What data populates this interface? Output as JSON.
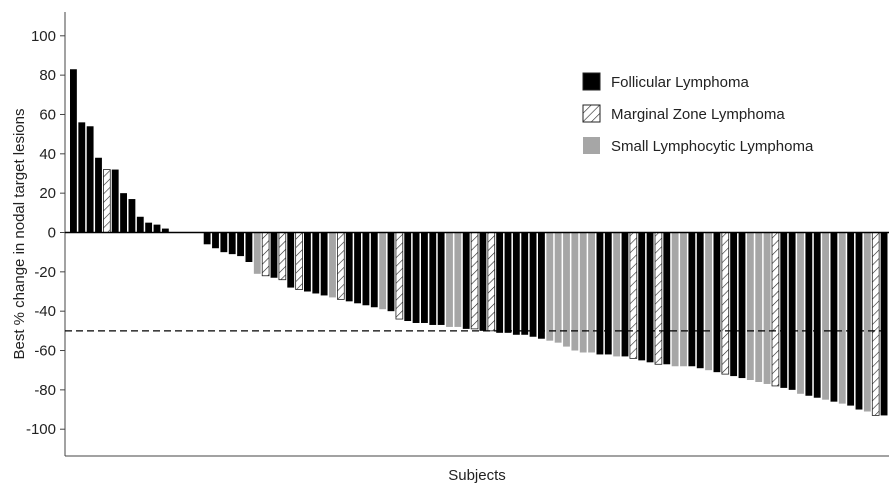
{
  "chart_data": {
    "type": "bar",
    "title": "",
    "xlabel": "Subjects",
    "ylabel": "Best % change in nodal target lesions",
    "ylim": [
      -115,
      110
    ],
    "yticks": [
      100,
      80,
      60,
      40,
      20,
      0,
      -20,
      -40,
      -60,
      -80,
      -100
    ],
    "grid": false,
    "legend_position": "top-right",
    "reference_line": {
      "y": -50,
      "style": "dashed"
    },
    "series": [
      {
        "name": "Follicular Lymphoma",
        "key": "FL",
        "color": "#000000",
        "pattern": "solid"
      },
      {
        "name": "Marginal Zone Lymphoma",
        "key": "MZL",
        "color": "#ffffff",
        "pattern": "hatched"
      },
      {
        "name": "Small Lymphocytic Lymphoma",
        "key": "SLL",
        "color": "#a6a6a6",
        "pattern": "solid"
      }
    ],
    "bars": [
      {
        "v": 83,
        "t": "FL"
      },
      {
        "v": 56,
        "t": "FL"
      },
      {
        "v": 54,
        "t": "FL"
      },
      {
        "v": 38,
        "t": "FL"
      },
      {
        "v": 32,
        "t": "MZL"
      },
      {
        "v": 32,
        "t": "FL"
      },
      {
        "v": 20,
        "t": "FL"
      },
      {
        "v": 17,
        "t": "FL"
      },
      {
        "v": 8,
        "t": "FL"
      },
      {
        "v": 5,
        "t": "FL"
      },
      {
        "v": 4,
        "t": "FL"
      },
      {
        "v": 2,
        "t": "FL"
      },
      {
        "v": 0,
        "t": "FL"
      },
      {
        "v": 0,
        "t": "FL"
      },
      {
        "v": 0,
        "t": "FL"
      },
      {
        "v": 0,
        "t": "FL"
      },
      {
        "v": -6,
        "t": "FL"
      },
      {
        "v": -8,
        "t": "FL"
      },
      {
        "v": -10,
        "t": "FL"
      },
      {
        "v": -11,
        "t": "FL"
      },
      {
        "v": -12,
        "t": "FL"
      },
      {
        "v": -15,
        "t": "FL"
      },
      {
        "v": -21,
        "t": "SLL"
      },
      {
        "v": -22,
        "t": "MZL"
      },
      {
        "v": -23,
        "t": "FL"
      },
      {
        "v": -24,
        "t": "MZL"
      },
      {
        "v": -28,
        "t": "FL"
      },
      {
        "v": -29,
        "t": "MZL"
      },
      {
        "v": -30,
        "t": "FL"
      },
      {
        "v": -31,
        "t": "FL"
      },
      {
        "v": -32,
        "t": "FL"
      },
      {
        "v": -33,
        "t": "SLL"
      },
      {
        "v": -34,
        "t": "MZL"
      },
      {
        "v": -35,
        "t": "FL"
      },
      {
        "v": -36,
        "t": "FL"
      },
      {
        "v": -37,
        "t": "FL"
      },
      {
        "v": -38,
        "t": "FL"
      },
      {
        "v": -39,
        "t": "SLL"
      },
      {
        "v": -40,
        "t": "FL"
      },
      {
        "v": -44,
        "t": "MZL"
      },
      {
        "v": -45,
        "t": "FL"
      },
      {
        "v": -46,
        "t": "FL"
      },
      {
        "v": -46,
        "t": "FL"
      },
      {
        "v": -47,
        "t": "FL"
      },
      {
        "v": -47,
        "t": "FL"
      },
      {
        "v": -48,
        "t": "SLL"
      },
      {
        "v": -48,
        "t": "SLL"
      },
      {
        "v": -49,
        "t": "FL"
      },
      {
        "v": -49,
        "t": "MZL"
      },
      {
        "v": -50,
        "t": "FL"
      },
      {
        "v": -50,
        "t": "MZL"
      },
      {
        "v": -51,
        "t": "FL"
      },
      {
        "v": -51,
        "t": "FL"
      },
      {
        "v": -52,
        "t": "FL"
      },
      {
        "v": -52,
        "t": "FL"
      },
      {
        "v": -53,
        "t": "FL"
      },
      {
        "v": -54,
        "t": "FL"
      },
      {
        "v": -55,
        "t": "SLL"
      },
      {
        "v": -56,
        "t": "SLL"
      },
      {
        "v": -58,
        "t": "SLL"
      },
      {
        "v": -60,
        "t": "SLL"
      },
      {
        "v": -61,
        "t": "SLL"
      },
      {
        "v": -61,
        "t": "SLL"
      },
      {
        "v": -62,
        "t": "FL"
      },
      {
        "v": -62,
        "t": "FL"
      },
      {
        "v": -63,
        "t": "SLL"
      },
      {
        "v": -63,
        "t": "FL"
      },
      {
        "v": -64,
        "t": "MZL"
      },
      {
        "v": -65,
        "t": "FL"
      },
      {
        "v": -66,
        "t": "FL"
      },
      {
        "v": -67,
        "t": "MZL"
      },
      {
        "v": -67,
        "t": "FL"
      },
      {
        "v": -68,
        "t": "SLL"
      },
      {
        "v": -68,
        "t": "SLL"
      },
      {
        "v": -68,
        "t": "FL"
      },
      {
        "v": -69,
        "t": "FL"
      },
      {
        "v": -70,
        "t": "SLL"
      },
      {
        "v": -71,
        "t": "FL"
      },
      {
        "v": -72,
        "t": "MZL"
      },
      {
        "v": -73,
        "t": "FL"
      },
      {
        "v": -74,
        "t": "FL"
      },
      {
        "v": -75,
        "t": "SLL"
      },
      {
        "v": -76,
        "t": "SLL"
      },
      {
        "v": -77,
        "t": "SLL"
      },
      {
        "v": -78,
        "t": "MZL"
      },
      {
        "v": -79,
        "t": "FL"
      },
      {
        "v": -80,
        "t": "FL"
      },
      {
        "v": -82,
        "t": "SLL"
      },
      {
        "v": -83,
        "t": "FL"
      },
      {
        "v": -84,
        "t": "FL"
      },
      {
        "v": -85,
        "t": "SLL"
      },
      {
        "v": -86,
        "t": "FL"
      },
      {
        "v": -87,
        "t": "SLL"
      },
      {
        "v": -88,
        "t": "FL"
      },
      {
        "v": -90,
        "t": "FL"
      },
      {
        "v": -91,
        "t": "SLL"
      },
      {
        "v": -93,
        "t": "MZL"
      },
      {
        "v": -93,
        "t": "FL"
      }
    ]
  }
}
